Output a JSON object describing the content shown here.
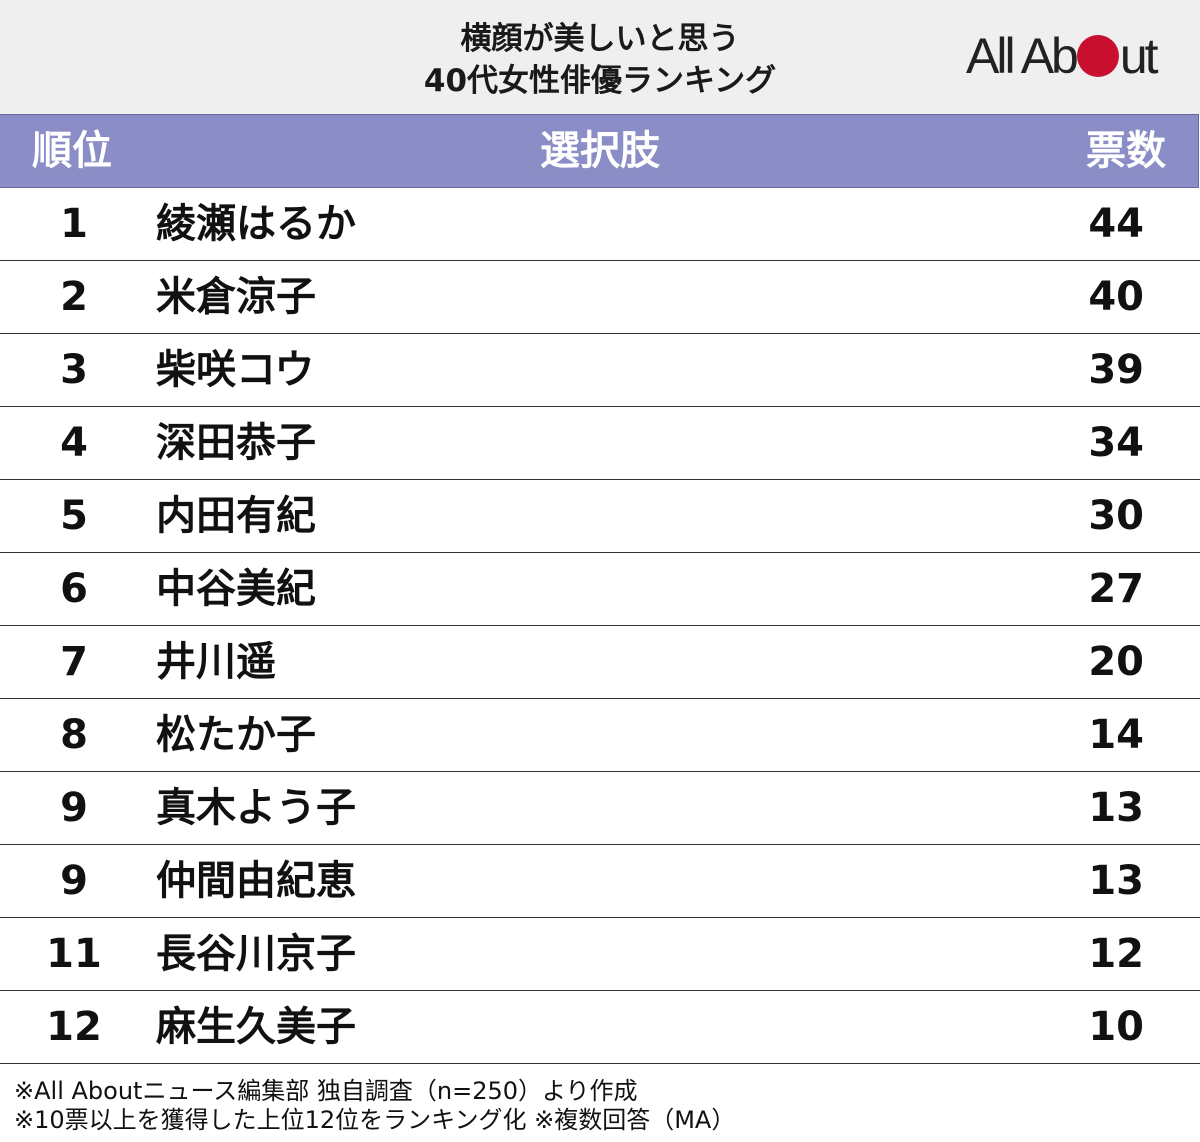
{
  "header": {
    "title_line1": "横顔が美しいと思う",
    "title_line2": "40代女性俳優ランキング",
    "logo_left": "All Ab",
    "logo_right": "ut",
    "logo_dot_color": "#c8102e"
  },
  "table": {
    "header_rank": "順位",
    "header_choice": "選択肢",
    "header_votes": "票数",
    "header_color": "#8b8ec6"
  },
  "chart_data": {
    "type": "table",
    "title": "横顔が美しいと思う40代女性俳優ランキング",
    "columns": [
      "順位",
      "選択肢",
      "票数"
    ],
    "rows": [
      {
        "rank": "1",
        "name": "綾瀬はるか",
        "votes": "44"
      },
      {
        "rank": "2",
        "name": "米倉涼子",
        "votes": "40"
      },
      {
        "rank": "3",
        "name": "柴咲コウ",
        "votes": "39"
      },
      {
        "rank": "4",
        "name": "深田恭子",
        "votes": "34"
      },
      {
        "rank": "5",
        "name": "内田有紀",
        "votes": "30"
      },
      {
        "rank": "6",
        "name": "中谷美紀",
        "votes": "27"
      },
      {
        "rank": "7",
        "name": "井川遥",
        "votes": "20"
      },
      {
        "rank": "8",
        "name": "松たか子",
        "votes": "14"
      },
      {
        "rank": "9",
        "name": "真木よう子",
        "votes": "13"
      },
      {
        "rank": "9",
        "name": "仲間由紀恵",
        "votes": "13"
      },
      {
        "rank": "11",
        "name": "長谷川京子",
        "votes": "12"
      },
      {
        "rank": "12",
        "name": "麻生久美子",
        "votes": "10"
      }
    ]
  },
  "notes": {
    "line1": "※All Aboutニュース編集部 独自調査（n=250）より作成",
    "line2": "※10票以上を獲得した上位12位をランキング化 ※複数回答（MA）"
  }
}
